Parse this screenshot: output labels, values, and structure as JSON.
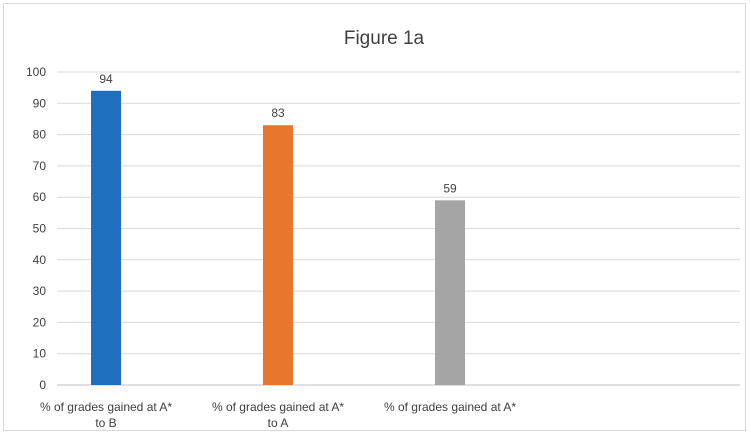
{
  "chart_data": {
    "type": "bar",
    "title": "Figure 1a",
    "xlabel": "",
    "ylabel": "",
    "categories": [
      [
        "% of grades gained at A*",
        "to B"
      ],
      [
        "% of grades gained at A*",
        "to A"
      ],
      [
        "% of grades gained at A*"
      ]
    ],
    "values": [
      94,
      83,
      59
    ],
    "data_labels": [
      "94",
      "83",
      "59"
    ],
    "bar_colors": [
      "#1f6fbf",
      "#e8762d",
      "#a5a5a5"
    ],
    "ylim": [
      0,
      100
    ],
    "yticks": [
      0,
      10,
      20,
      30,
      40,
      50,
      60,
      70,
      80,
      90,
      100
    ],
    "grid": true,
    "legend": "none"
  }
}
